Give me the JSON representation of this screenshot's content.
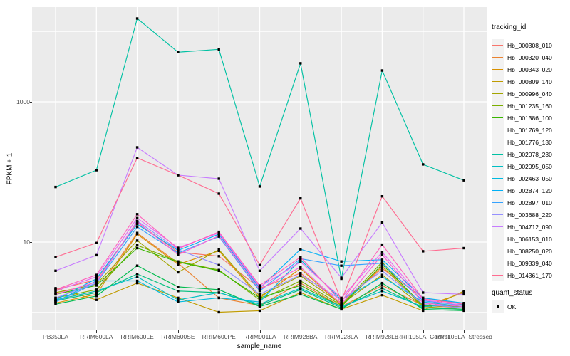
{
  "chart_data": {
    "type": "line",
    "title": "",
    "xlabel": "sample_name",
    "ylabel": "FPKM + 1",
    "y_scale": "log10",
    "grid": true,
    "panel_bg": "#EBEBEB",
    "point_color": "#000000",
    "y_major_ticks": [
      10,
      1000
    ],
    "y_minor_gridlines": [
      1,
      100,
      10000
    ],
    "ylim": [
      0.56,
      22000
    ],
    "legend_position": "right",
    "legend_title": "tracking_id",
    "quant_legend": {
      "title": "quant_status",
      "items": [
        {
          "label": "OK"
        }
      ]
    },
    "categories": [
      "PB350LA",
      "RRIM600LA",
      "RRIM600LE",
      "RRIM600SE",
      "RRIM600PE",
      "RRIM901LA",
      "RRIM928BA",
      "RRIM928LA",
      "RRIM928LE",
      "RRII105LA_Control",
      "RRII105LA_Stressed"
    ],
    "series": [
      {
        "name": "Hb_000308_010",
        "color": "#F8766D",
        "values": [
          2.1,
          2.9,
          19,
          7.2,
          6.3,
          2.2,
          3.6,
          1.35,
          4.2,
          1.6,
          1.3
        ]
      },
      {
        "name": "Hb_000320_040",
        "color": "#EA8331",
        "values": [
          1.5,
          2.0,
          13.5,
          5.0,
          1.6,
          1.25,
          2.6,
          1.2,
          2.4,
          1.25,
          1.15
        ]
      },
      {
        "name": "Hb_000343_020",
        "color": "#D89000",
        "values": [
          1.35,
          1.8,
          13,
          4.8,
          7.5,
          1.6,
          4.2,
          1.25,
          4.5,
          1.2,
          1.9
        ]
      },
      {
        "name": "Hb_000809_140",
        "color": "#C09B00",
        "values": [
          2.2,
          1.5,
          2.6,
          1.6,
          1.0,
          1.05,
          1.9,
          1.1,
          1.75,
          1.05,
          2.0
        ]
      },
      {
        "name": "Hb_000996_040",
        "color": "#A3A500",
        "values": [
          1.9,
          2.5,
          10.5,
          3.7,
          7.8,
          1.7,
          3.3,
          1.3,
          3.4,
          1.2,
          1.1
        ]
      },
      {
        "name": "Hb_001235_160",
        "color": "#7CAE00",
        "values": [
          1.6,
          2.1,
          9.0,
          5.3,
          4.0,
          1.5,
          2.8,
          1.25,
          5.2,
          1.15,
          1.1
        ]
      },
      {
        "name": "Hb_001386_100",
        "color": "#39B600",
        "values": [
          1.8,
          2.4,
          8.2,
          5.2,
          3.9,
          1.6,
          2.4,
          1.2,
          4.8,
          1.25,
          1.2
        ]
      },
      {
        "name": "Hb_001769_120",
        "color": "#00BB4E",
        "values": [
          1.3,
          1.7,
          4.6,
          2.3,
          2.1,
          1.2,
          1.8,
          1.1,
          2.6,
          1.1,
          1.05
        ]
      },
      {
        "name": "Hb_001776_130",
        "color": "#00BF7D",
        "values": [
          1.45,
          1.9,
          3.5,
          2.0,
          1.9,
          1.25,
          2.1,
          1.15,
          2.2,
          1.15,
          1.1
        ]
      },
      {
        "name": "Hb_002078_230",
        "color": "#00C1A3",
        "values": [
          61,
          106,
          15400,
          5100,
          5600,
          62,
          3540,
          3.0,
          2800,
          128,
          76
        ]
      },
      {
        "name": "Hb_002095_050",
        "color": "#00BFC4",
        "values": [
          1.5,
          2.0,
          3.2,
          1.5,
          1.9,
          1.3,
          2.2,
          1.2,
          2.0,
          1.2,
          1.3
        ]
      },
      {
        "name": "Hb_002463_050",
        "color": "#00BAE0",
        "values": [
          1.4,
          2.8,
          2.8,
          1.4,
          1.6,
          1.4,
          5.6,
          1.5,
          3.2,
          1.4,
          1.2
        ]
      },
      {
        "name": "Hb_002874_120",
        "color": "#00B0F6",
        "values": [
          1.5,
          3.0,
          18,
          7.6,
          13,
          2.2,
          7.9,
          5.3,
          5.6,
          1.6,
          1.35
        ]
      },
      {
        "name": "Hb_002897_010",
        "color": "#35A2FF",
        "values": [
          1.4,
          2.6,
          16.5,
          7.0,
          12,
          2.0,
          5.8,
          4.6,
          5.0,
          1.45,
          1.25
        ]
      },
      {
        "name": "Hb_003688_220",
        "color": "#9590FF",
        "values": [
          1.6,
          2.6,
          20,
          7.8,
          4.7,
          1.8,
          3.4,
          1.5,
          3.9,
          1.3,
          1.15
        ]
      },
      {
        "name": "Hb_004712_090",
        "color": "#C77CFF",
        "values": [
          3.9,
          6.5,
          224,
          90,
          80,
          3.9,
          15.6,
          3.1,
          19,
          1.9,
          1.8
        ]
      },
      {
        "name": "Hb_006153_010",
        "color": "#E76BF3",
        "values": [
          2.0,
          3.2,
          22,
          8.3,
          13.5,
          2.3,
          5.2,
          1.6,
          7.2,
          1.5,
          1.25
        ]
      },
      {
        "name": "Hb_008250_020",
        "color": "#FB61D7",
        "values": [
          1.8,
          2.7,
          19.5,
          6.6,
          12.3,
          2.1,
          4.4,
          1.3,
          6.6,
          1.35,
          1.2
        ]
      },
      {
        "name": "Hb_009339_040",
        "color": "#FF62BC",
        "values": [
          2.1,
          3.4,
          25,
          8.0,
          14,
          2.4,
          6.1,
          1.4,
          9.2,
          1.55,
          1.3
        ]
      },
      {
        "name": "Hb_014361_170",
        "color": "#FF6C91",
        "values": [
          6.1,
          9.7,
          158,
          90,
          49,
          4.7,
          42,
          1.45,
          45,
          7.4,
          8.2
        ]
      }
    ]
  }
}
